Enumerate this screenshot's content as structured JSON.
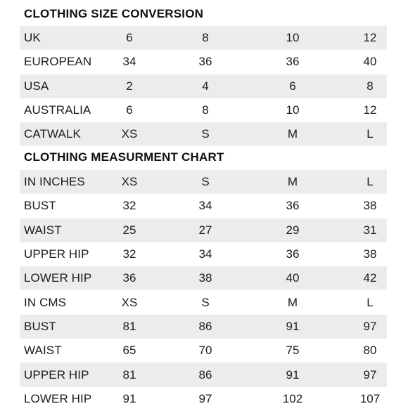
{
  "conversion": {
    "title": "CLOTHING SIZE CONVERSION",
    "rows": [
      {
        "label": "UK",
        "values": [
          "6",
          "8",
          "10",
          "12"
        ]
      },
      {
        "label": "EUROPEAN",
        "values": [
          "34",
          "36",
          "36",
          "40"
        ]
      },
      {
        "label": "USA",
        "values": [
          "2",
          "4",
          "6",
          "8"
        ]
      },
      {
        "label": "AUSTRALIA",
        "values": [
          "6",
          "8",
          "10",
          "12"
        ]
      },
      {
        "label": "CATWALK",
        "values": [
          "XS",
          "S",
          "M",
          "L"
        ]
      }
    ]
  },
  "measurement": {
    "title": "CLOTHING MEASURMENT CHART",
    "rows": [
      {
        "label": "IN INCHES",
        "values": [
          "XS",
          "S",
          "M",
          "L"
        ]
      },
      {
        "label": "BUST",
        "values": [
          "32",
          "34",
          "36",
          "38"
        ]
      },
      {
        "label": "WAIST",
        "values": [
          "25",
          "27",
          "29",
          "31"
        ]
      },
      {
        "label": "UPPER HIP",
        "values": [
          "32",
          "34",
          "36",
          "38"
        ]
      },
      {
        "label": "LOWER HIP",
        "values": [
          "36",
          "38",
          "40",
          "42"
        ]
      },
      {
        "label": "IN CMS",
        "values": [
          "XS",
          "S",
          "M",
          "L"
        ]
      },
      {
        "label": "BUST",
        "values": [
          "81",
          "86",
          "91",
          "97"
        ]
      },
      {
        "label": "WAIST",
        "values": [
          "65",
          "70",
          "75",
          "80"
        ]
      },
      {
        "label": "UPPER HIP",
        "values": [
          "81",
          "86",
          "91",
          "97"
        ]
      },
      {
        "label": "LOWER HIP",
        "values": [
          "91",
          "97",
          "102",
          "107"
        ]
      }
    ]
  }
}
